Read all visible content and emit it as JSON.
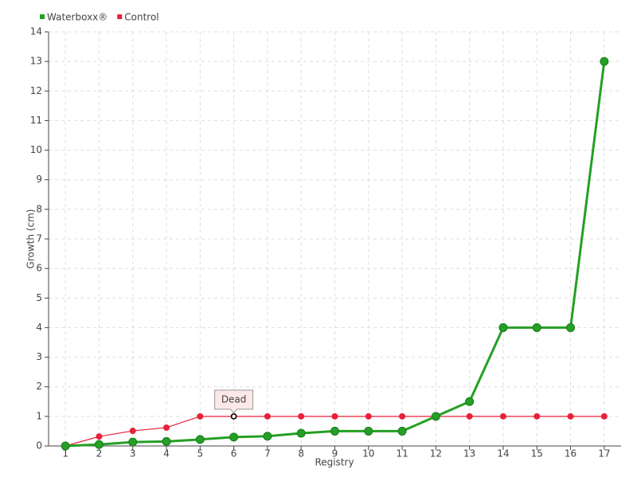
{
  "chart_data": {
    "type": "line",
    "x_label": "Registry",
    "y_label": "Growth (cm)",
    "categories": [
      "1",
      "2",
      "3",
      "4",
      "5",
      "6",
      "7",
      "8",
      "9",
      "10",
      "11",
      "12",
      "13",
      "14",
      "15",
      "16",
      "17"
    ],
    "series": [
      {
        "name": "Waterboxx®",
        "color": "#24a024",
        "values": [
          0,
          0.05,
          0.13,
          0.15,
          0.22,
          0.3,
          0.33,
          0.43,
          0.5,
          0.5,
          0.5,
          1,
          1.5,
          4,
          4,
          4,
          13
        ]
      },
      {
        "name": "Control",
        "color": "#e8213a",
        "values": [
          0,
          0.32,
          0.51,
          0.62,
          1,
          1,
          1,
          1,
          1,
          1,
          1,
          1,
          1,
          1,
          1,
          1,
          1
        ]
      }
    ],
    "annotations": [
      {
        "text": "Dead",
        "x": "6",
        "series": "Control"
      }
    ],
    "ylim": [
      0,
      14
    ],
    "yticks": [
      0,
      1,
      2,
      3,
      4,
      5,
      6,
      7,
      8,
      9,
      10,
      11,
      12,
      13,
      14
    ],
    "grid": true,
    "legend": "top-left"
  }
}
